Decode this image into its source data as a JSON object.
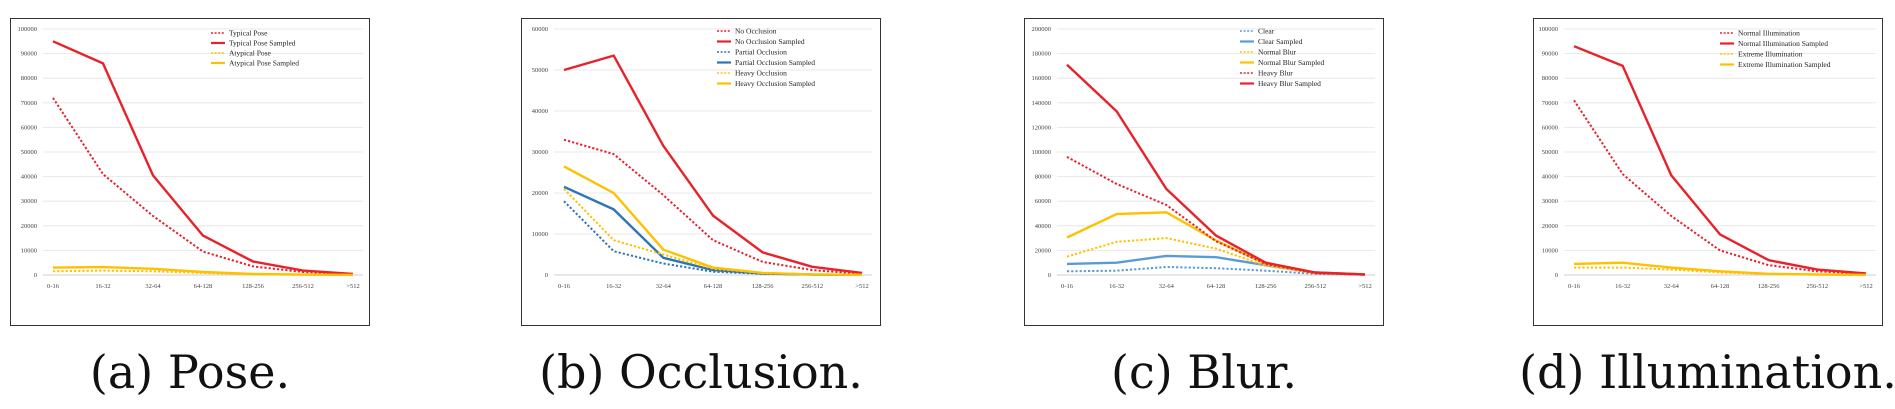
{
  "chart_data": [
    {
      "type": "line",
      "caption": "(a) Pose.",
      "categories": [
        "0-16",
        "16-32",
        "32-64",
        "64-128",
        "128-256",
        "256-512",
        ">512"
      ],
      "ylim": [
        0,
        100000
      ],
      "yticks": [
        "0",
        "10000",
        "20000",
        "30000",
        "40000",
        "50000",
        "60000",
        "70000",
        "80000",
        "90000",
        "100000"
      ],
      "series": [
        {
          "name": "Typical Pose",
          "color": "#e8212a",
          "dash": true,
          "values": [
            72000,
            41000,
            24000,
            9500,
            3500,
            1200,
            400
          ]
        },
        {
          "name": "Typical Pose Sampled",
          "color": "#e8212a",
          "dash": false,
          "values": [
            95000,
            86000,
            40500,
            16000,
            5500,
            1800,
            400
          ]
        },
        {
          "name": "Atypical Pose",
          "color": "#ffc000",
          "dash": true,
          "values": [
            1500,
            1800,
            1500,
            800,
            300,
            100,
            50
          ]
        },
        {
          "name": "Atypical Pose Sampled",
          "color": "#ffc000",
          "dash": false,
          "values": [
            3000,
            3200,
            2500,
            1200,
            400,
            150,
            50
          ]
        }
      ]
    },
    {
      "type": "line",
      "caption": "(b) Occlusion.",
      "categories": [
        "0-16",
        "16-32",
        "32-64",
        "64-128",
        "128-256",
        "256-512",
        ">512"
      ],
      "ylim": [
        0,
        60000
      ],
      "yticks": [
        "0",
        "10000",
        "20000",
        "30000",
        "40000",
        "50000",
        "60000"
      ],
      "series": [
        {
          "name": "No Occlusion",
          "color": "#e8212a",
          "dash": true,
          "values": [
            33000,
            29500,
            19500,
            8500,
            3200,
            1200,
            300
          ]
        },
        {
          "name": "No Occlusion Sampled",
          "color": "#e8212a",
          "dash": false,
          "values": [
            50000,
            53500,
            31500,
            14500,
            5500,
            2000,
            500
          ]
        },
        {
          "name": "Partial Occlusion",
          "color": "#2e75b6",
          "dash": true,
          "values": [
            18000,
            5800,
            2800,
            800,
            300,
            100,
            50
          ]
        },
        {
          "name": "Partial Occlusion Sampled",
          "color": "#2e75b6",
          "dash": false,
          "values": [
            21500,
            16000,
            4200,
            1200,
            400,
            100,
            50
          ]
        },
        {
          "name": "Heavy Occlusion",
          "color": "#ffc000",
          "dash": true,
          "values": [
            21000,
            8500,
            5000,
            1500,
            500,
            150,
            50
          ]
        },
        {
          "name": "Heavy Occlusion Sampled",
          "color": "#ffc000",
          "dash": false,
          "values": [
            26500,
            20000,
            6200,
            1800,
            500,
            150,
            50
          ]
        }
      ]
    },
    {
      "type": "line",
      "caption": "(c) Blur.",
      "categories": [
        "0-16",
        "16-32",
        "32-64",
        "64-128",
        "128-256",
        "256-512",
        ">512"
      ],
      "ylim": [
        0,
        200000
      ],
      "yticks": [
        "0",
        "20000",
        "40000",
        "60000",
        "80000",
        "100000",
        "120000",
        "140000",
        "160000",
        "180000",
        "200000"
      ],
      "series": [
        {
          "name": "Clear",
          "color": "#5b9bd5",
          "dash": true,
          "values": [
            3000,
            3500,
            6500,
            5500,
            3500,
            1000,
            200
          ]
        },
        {
          "name": "Clear Sampled",
          "color": "#5b9bd5",
          "dash": false,
          "values": [
            9000,
            10000,
            15500,
            14500,
            8000,
            2000,
            400
          ]
        },
        {
          "name": "Normal Blur",
          "color": "#ffc000",
          "dash": true,
          "values": [
            15000,
            27000,
            30000,
            21500,
            7500,
            1500,
            400
          ]
        },
        {
          "name": "Normal Blur Sampled",
          "color": "#ffc000",
          "dash": false,
          "values": [
            30500,
            49500,
            51000,
            28000,
            9000,
            1800,
            400
          ]
        },
        {
          "name": "Heavy Blur",
          "color": "#e8212a",
          "dash": true,
          "values": [
            96000,
            74000,
            57000,
            27500,
            9000,
            1500,
            300
          ]
        },
        {
          "name": "Heavy Blur Sampled",
          "color": "#e8212a",
          "dash": false,
          "values": [
            171000,
            133000,
            70000,
            32000,
            10000,
            2000,
            400
          ]
        }
      ]
    },
    {
      "type": "line",
      "caption": "(d) Illumination.",
      "categories": [
        "0-16",
        "16-32",
        "32-64",
        "64-128",
        "128-256",
        "256-512",
        ">512"
      ],
      "ylim": [
        0,
        100000
      ],
      "yticks": [
        "0",
        "10000",
        "20000",
        "30000",
        "40000",
        "50000",
        "60000",
        "70000",
        "80000",
        "90000",
        "100000"
      ],
      "series": [
        {
          "name": "Normal Illumination",
          "color": "#e8212a",
          "dash": true,
          "values": [
            71000,
            41000,
            24000,
            10000,
            4000,
            1500,
            500
          ]
        },
        {
          "name": "Normal Illumination Sampled",
          "color": "#e8212a",
          "dash": false,
          "values": [
            93000,
            85000,
            40500,
            16500,
            6000,
            2200,
            600
          ]
        },
        {
          "name": "Extreme Illumination",
          "color": "#ffc000",
          "dash": true,
          "values": [
            3000,
            3000,
            2200,
            1000,
            400,
            150,
            50
          ]
        },
        {
          "name": "Extreme Illumination Sampled",
          "color": "#ffc000",
          "dash": false,
          "values": [
            4500,
            5000,
            3000,
            1500,
            500,
            200,
            50
          ]
        }
      ]
    }
  ]
}
